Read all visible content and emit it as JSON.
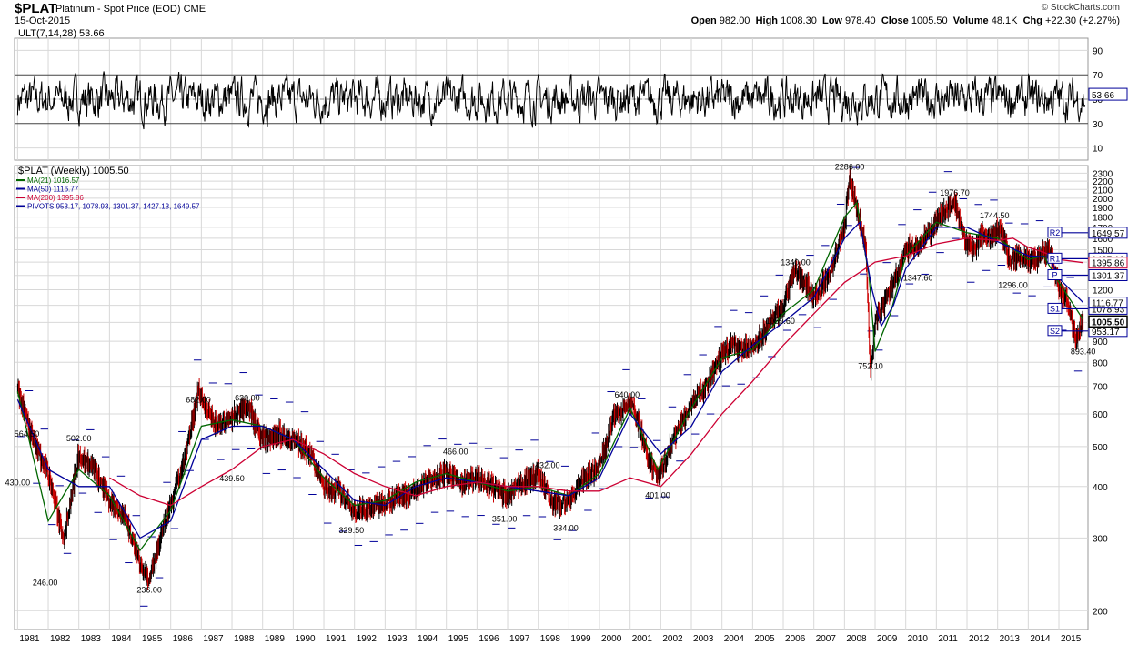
{
  "header": {
    "symbol": "$PLAT",
    "description": "Platinum  - Spot Price (EOD)  CME",
    "date": "15-Oct-2015",
    "provider": "© StockCharts.com",
    "open_label": "Open",
    "open": "982.00",
    "high_label": "High",
    "high": "1008.30",
    "low_label": "Low",
    "low": "978.40",
    "close_label": "Close",
    "close": "1005.50",
    "volume_label": "Volume",
    "volume": "48.1K",
    "chg_label": "Chg",
    "chg": "+22.30 (+2.27%)"
  },
  "colors": {
    "price_up": "#000000",
    "price_down": "#cc0000",
    "ma21": "#006600",
    "ma50": "#000099",
    "ma200": "#cc0033",
    "pivots": "#000099",
    "grid": "#d8d8d8"
  },
  "chart_data": [
    {
      "type": "line",
      "title": "ULT(7,14,28) 53.66",
      "series": [
        {
          "name": "ULT(7,14,28)",
          "last": 53.66
        }
      ],
      "ylim": [
        0,
        100
      ],
      "y_ticks": [
        10,
        30,
        50,
        70,
        90
      ],
      "reference_lines": [
        30,
        70
      ],
      "last_value_label": "53.66",
      "grid": true
    },
    {
      "type": "line",
      "title": "$PLAT (Weekly) 1005.50",
      "y_scale": "log",
      "ylim": [
        180,
        2400
      ],
      "y_ticks": [
        200,
        300,
        400,
        500,
        600,
        700,
        800,
        900,
        1000,
        1100,
        1200,
        1300,
        1400,
        1500,
        1600,
        1700,
        1800,
        1900,
        2000,
        2100,
        2200,
        2300
      ],
      "x_ticks": [
        "1981",
        "1982",
        "1983",
        "1984",
        "1985",
        "1986",
        "1987",
        "1988",
        "1989",
        "1990",
        "1991",
        "1992",
        "1993",
        "1994",
        "1995",
        "1996",
        "1997",
        "1998",
        "1999",
        "2000",
        "2001",
        "2002",
        "2003",
        "2004",
        "2005",
        "2006",
        "2007",
        "2008",
        "2009",
        "2010",
        "2011",
        "2012",
        "2013",
        "2014",
        "2015"
      ],
      "grid": true,
      "legend": [
        "MA(21) 1016.57",
        "MA(50) 1116.77",
        "MA(200) 1395.86",
        "PIVOTS 953.17, 1078.93, 1301.37, 1427.13, 1649.57"
      ],
      "price": {
        "x": [
          1981.0,
          1981.5,
          1982.0,
          1982.5,
          1983.0,
          1983.5,
          1984.0,
          1984.5,
          1985.0,
          1985.3,
          1985.6,
          1986.0,
          1986.5,
          1986.9,
          1987.5,
          1988.0,
          1988.5,
          1989.0,
          1989.5,
          1990.0,
          1990.5,
          1991.0,
          1991.5,
          1992.0,
          1992.5,
          1993.0,
          1993.5,
          1994.0,
          1994.5,
          1995.0,
          1995.5,
          1996.0,
          1996.5,
          1997.0,
          1997.5,
          1998.0,
          1998.5,
          1999.0,
          1999.5,
          2000.0,
          2000.5,
          2001.0,
          2001.3,
          2001.6,
          2001.9,
          2002.5,
          2003.0,
          2003.5,
          2004.0,
          2004.3,
          2004.7,
          2005.0,
          2005.5,
          2006.0,
          2006.4,
          2006.7,
          2007.0,
          2007.5,
          2008.0,
          2008.17,
          2008.4,
          2008.7,
          2008.85,
          2009.0,
          2009.5,
          2010.0,
          2010.5,
          2011.0,
          2011.3,
          2011.6,
          2011.9,
          2012.2,
          2012.5,
          2012.8,
          2013.1,
          2013.4,
          2013.7,
          2014.0,
          2014.4,
          2014.7,
          2015.0,
          2015.3,
          2015.55,
          2015.79
        ],
        "y": [
          690,
          520,
          430,
          300,
          480,
          440,
          370,
          340,
          260,
          236,
          290,
          360,
          480,
          682,
          560,
          590,
          630,
          520,
          540,
          520,
          490,
          400,
          390,
          350,
          355,
          370,
          380,
          390,
          420,
          430,
          410,
          420,
          400,
          380,
          410,
          430,
          360,
          370,
          420,
          450,
          600,
          640,
          560,
          460,
          420,
          540,
          640,
          700,
          840,
          880,
          860,
          870,
          980,
          1100,
          1340,
          1250,
          1150,
          1300,
          1700,
          2286,
          1900,
          1500,
          752,
          1000,
          1200,
          1500,
          1550,
          1750,
          1880,
          1976,
          1600,
          1500,
          1650,
          1600,
          1700,
          1400,
          1450,
          1400,
          1450,
          1500,
          1200,
          1120,
          900,
          1005.5
        ],
        "labels": [
          {
            "text": "564.50",
            "x": 1981.3,
            "y": 564.5
          },
          {
            "text": "430.00",
            "x": 1981.0,
            "y": 430.0
          },
          {
            "text": "246.00",
            "x": 1981.9,
            "y": 246.0
          },
          {
            "text": "502.00",
            "x": 1983.0,
            "y": 502.0
          },
          {
            "text": "236.00",
            "x": 1985.3,
            "y": 236.0
          },
          {
            "text": "682.00",
            "x": 1986.9,
            "y": 682.0
          },
          {
            "text": "439.50",
            "x": 1988.0,
            "y": 439.5
          },
          {
            "text": "630.00",
            "x": 1988.5,
            "y": 630.0
          },
          {
            "text": "329.50",
            "x": 1991.9,
            "y": 329.5
          },
          {
            "text": "466.00",
            "x": 1995.3,
            "y": 466.0
          },
          {
            "text": "351.00",
            "x": 1996.9,
            "y": 351.0
          },
          {
            "text": "432.00",
            "x": 1998.3,
            "y": 432.0
          },
          {
            "text": "334.00",
            "x": 1998.9,
            "y": 334.0
          },
          {
            "text": "640.00",
            "x": 2000.9,
            "y": 640.0
          },
          {
            "text": "401.00",
            "x": 2001.9,
            "y": 401.0
          },
          {
            "text": "1059.60",
            "x": 2005.9,
            "y": 1059.6
          },
          {
            "text": "1340.00",
            "x": 2006.4,
            "y": 1340.0
          },
          {
            "text": "2286.00",
            "x": 2008.17,
            "y": 2286.0
          },
          {
            "text": "752.10",
            "x": 2008.85,
            "y": 752.1
          },
          {
            "text": "1347.60",
            "x": 2010.4,
            "y": 1347.6
          },
          {
            "text": "1976.70",
            "x": 2011.6,
            "y": 1976.7
          },
          {
            "text": "1744.50",
            "x": 2012.9,
            "y": 1744.5
          },
          {
            "text": "1296.00",
            "x": 2013.5,
            "y": 1296.0
          },
          {
            "text": "893.40",
            "x": 2015.79,
            "y": 893.4
          }
        ]
      },
      "series": [
        {
          "name": "MA(21)",
          "last": 1016.57,
          "x": [
            1981.0,
            1982.0,
            1983.0,
            1984.0,
            1985.0,
            1986.0,
            1987.0,
            1988.0,
            1989.0,
            1990.0,
            1991.0,
            1992.0,
            1993.0,
            1994.0,
            1995.0,
            1996.0,
            1997.0,
            1998.0,
            1999.0,
            2000.0,
            2001.0,
            2001.9,
            2003.0,
            2004.0,
            2005.0,
            2006.0,
            2007.0,
            2008.0,
            2008.4,
            2008.8,
            2009.0,
            2009.5,
            2010.0,
            2011.0,
            2012.0,
            2013.0,
            2014.0,
            2014.5,
            2015.0,
            2015.79
          ],
          "y": [
            680,
            330,
            440,
            380,
            280,
            350,
            560,
            580,
            560,
            520,
            420,
            360,
            370,
            410,
            430,
            410,
            390,
            400,
            380,
            430,
            620,
            440,
            620,
            820,
            860,
            1050,
            1200,
            1800,
            1950,
            1300,
            850,
            1050,
            1450,
            1750,
            1650,
            1600,
            1420,
            1450,
            1250,
            1016.57
          ]
        },
        {
          "name": "MA(50)",
          "last": 1116.77,
          "x": [
            1981.0,
            1982.0,
            1983.0,
            1984.0,
            1985.0,
            1986.0,
            1987.0,
            1988.0,
            1989.0,
            1990.0,
            1991.0,
            1992.0,
            1993.0,
            1994.0,
            1995.0,
            1996.0,
            1997.0,
            1998.0,
            1999.0,
            2000.0,
            2001.0,
            2002.0,
            2003.0,
            2004.0,
            2005.0,
            2006.0,
            2007.0,
            2008.0,
            2008.5,
            2008.9,
            2009.2,
            2009.6,
            2010.0,
            2011.0,
            2012.0,
            2013.0,
            2014.0,
            2014.7,
            2015.0,
            2015.79
          ],
          "y": [
            650,
            440,
            400,
            400,
            300,
            330,
            520,
            560,
            560,
            520,
            440,
            370,
            360,
            400,
            420,
            410,
            400,
            390,
            380,
            420,
            600,
            480,
            560,
            760,
            880,
            1000,
            1150,
            1600,
            1750,
            1200,
            980,
            1100,
            1350,
            1700,
            1700,
            1570,
            1450,
            1440,
            1280,
            1116.77
          ]
        },
        {
          "name": "MA(200)",
          "last": 1395.86,
          "x": [
            1984.0,
            1985.0,
            1986.0,
            1987.0,
            1988.0,
            1989.0,
            1990.0,
            1991.0,
            1992.0,
            1993.0,
            1994.0,
            1995.0,
            1996.0,
            1997.0,
            1998.0,
            1999.0,
            2000.0,
            2001.0,
            2002.0,
            2003.0,
            2004.0,
            2005.0,
            2006.0,
            2007.0,
            2008.0,
            2009.0,
            2010.0,
            2011.0,
            2012.0,
            2013.0,
            2013.5,
            2014.0,
            2014.5,
            2015.0,
            2015.79
          ],
          "y": [
            420,
            380,
            360,
            400,
            440,
            500,
            520,
            480,
            430,
            400,
            380,
            400,
            410,
            400,
            400,
            390,
            390,
            420,
            400,
            480,
            600,
            720,
            880,
            1050,
            1250,
            1400,
            1450,
            1550,
            1600,
            1580,
            1600,
            1520,
            1480,
            1420,
            1395.86
          ]
        }
      ],
      "pivots": [
        {
          "label": "S2",
          "value": 953.17,
          "text": "953.17"
        },
        {
          "label": "S1",
          "value": 1078.93,
          "text": "1078.93"
        },
        {
          "label": "P",
          "value": 1301.37,
          "text": "1301.37"
        },
        {
          "label": "R1",
          "value": 1427.13,
          "text": "1427.13"
        },
        {
          "label": "R2",
          "value": 1649.57,
          "text": "1649.57"
        }
      ],
      "right_labels": [
        {
          "text": "1116.77",
          "value": 1116.77,
          "color": "#000099"
        },
        {
          "text": "1395.86",
          "value": 1395.86,
          "color": "#cc0033"
        },
        {
          "text": "1005.50",
          "value": 1005.5,
          "color": "#000000",
          "bold": true
        }
      ]
    }
  ]
}
